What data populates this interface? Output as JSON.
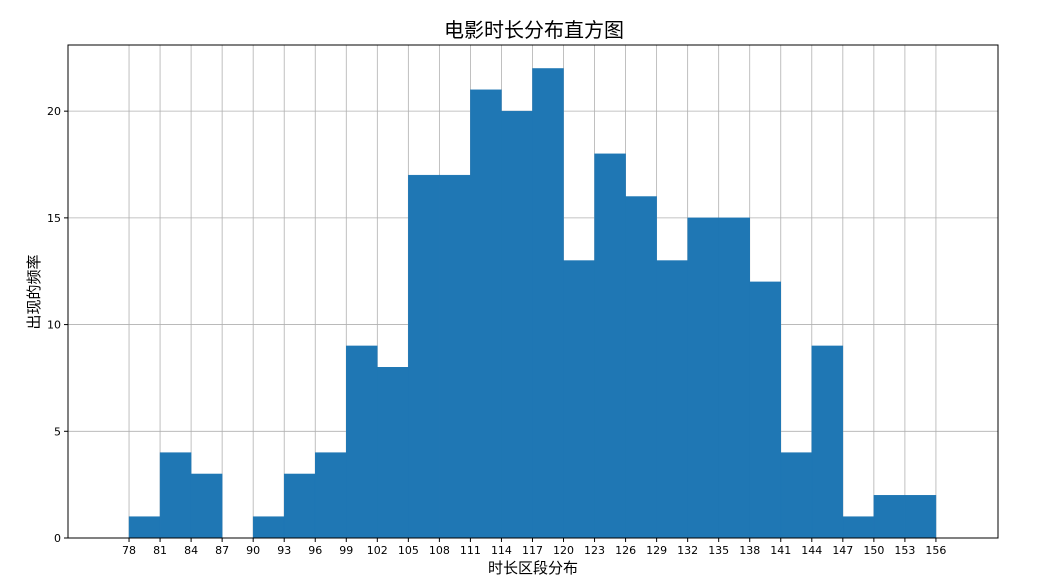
{
  "chart_data": {
    "type": "bar",
    "title": "电影时长分布直方图",
    "xlabel": "时长区段分布",
    "ylabel": "出现的频率",
    "bin_edges": [
      78,
      81,
      84,
      87,
      90,
      93,
      96,
      99,
      102,
      105,
      108,
      111,
      114,
      117,
      120,
      123,
      126,
      129,
      132,
      135,
      138,
      141,
      144,
      147,
      150,
      153,
      156
    ],
    "values": [
      1,
      4,
      3,
      0,
      1,
      3,
      4,
      9,
      8,
      17,
      17,
      21,
      20,
      22,
      13,
      18,
      16,
      13,
      15,
      15,
      12,
      4,
      9,
      1,
      2,
      2
    ],
    "xticks": [
      "78",
      "81",
      "84",
      "87",
      "90",
      "93",
      "96",
      "99",
      "102",
      "105",
      "108",
      "111",
      "114",
      "117",
      "120",
      "123",
      "126",
      "129",
      "132",
      "135",
      "138",
      "141",
      "144",
      "147",
      "150",
      "153",
      "156"
    ],
    "yticks": [
      "0",
      "5",
      "10",
      "15",
      "20"
    ],
    "xlim": [
      72.1,
      162.0
    ],
    "ylim": [
      0,
      23.1
    ],
    "grid": true,
    "bar_color": "#1f77b4"
  }
}
